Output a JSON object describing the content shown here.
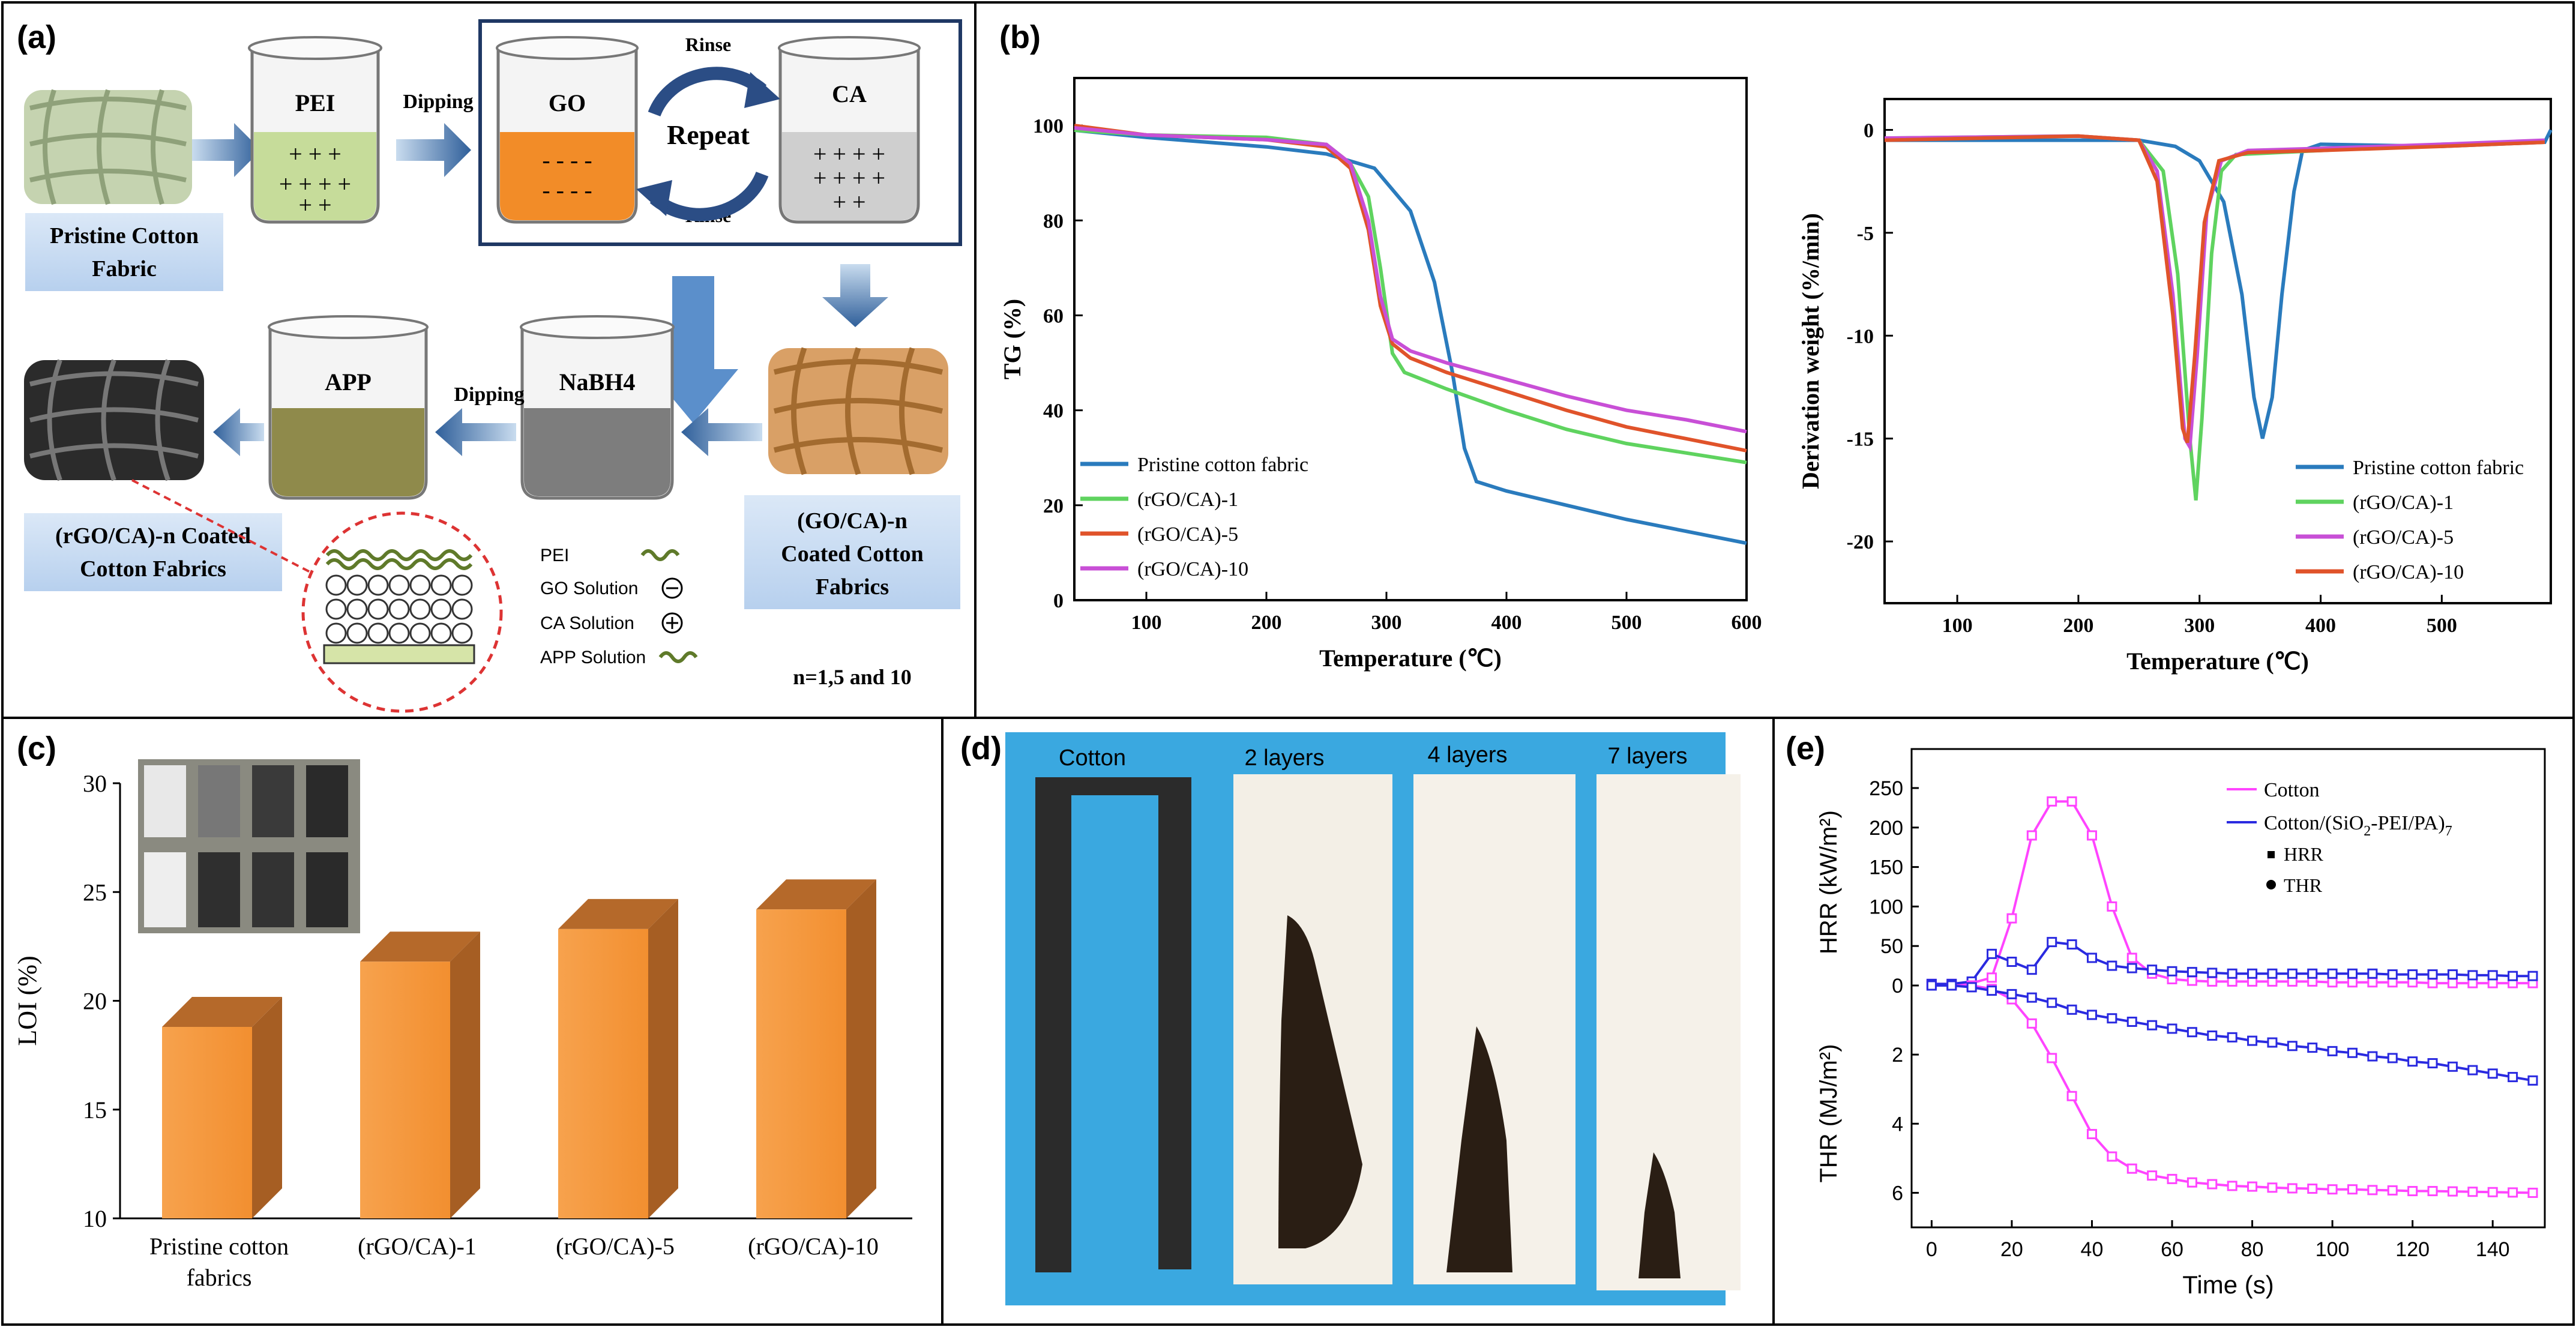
{
  "panels": {
    "a": {
      "label": "(a)",
      "pei": "PEI",
      "go": "GO",
      "ca": "CA",
      "app": "APP",
      "nabh4": "NaBH4",
      "dipping1": "Dipping",
      "dipping2": "Dipping",
      "rinse_top": "Rinse",
      "rinse_bottom": "Rinse",
      "repeat": "Repeat",
      "pristine": [
        "Pristine Cotton",
        "Fabric"
      ],
      "go_ca_coated": [
        "(GO/CA)-n",
        "Coated Cotton",
        "Fabrics"
      ],
      "rgo_coated": [
        "(rGO/CA)-n Coated",
        "Cotton Fabrics"
      ],
      "legend": [
        "PEI",
        "GO Solution",
        "CA Solution",
        "APP Solution"
      ],
      "n_values": "n=1,5 and 10"
    },
    "b": {
      "label": "(b)"
    },
    "c": {
      "label": "(c)"
    },
    "d": {
      "label": "(d)",
      "strips": [
        "Cotton",
        "2 layers",
        "4 layers",
        "7 layers"
      ]
    },
    "e": {
      "label": "(e)"
    }
  },
  "colors": {
    "pristine": "#2a7bbd",
    "rgo1": "#5fd35f",
    "rgo5": "#e0532a",
    "rgo10": "#c84fd6",
    "bar": "#f5973d",
    "cotton_e": "#ff44ff",
    "coated_e": "#2a2ae0",
    "blue_bg": "#3aa8e0"
  },
  "chart_data": [
    {
      "id": "tg",
      "type": "line",
      "xlabel": "Temperature (℃)",
      "ylabel": "TG (%)",
      "xlim": [
        40,
        600
      ],
      "ylim": [
        0,
        110
      ],
      "xticks": [
        100,
        200,
        300,
        400,
        500,
        600
      ],
      "yticks": [
        0,
        20,
        40,
        60,
        80,
        100
      ],
      "legend_position": "bottom-left",
      "series": [
        {
          "name": "Pristine cotton fabric",
          "color": "#2a7bbd",
          "points": [
            [
              40,
              99
            ],
            [
              100,
              97.5
            ],
            [
              200,
              95.5
            ],
            [
              250,
              94
            ],
            [
              290,
              91
            ],
            [
              320,
              82
            ],
            [
              340,
              67
            ],
            [
              355,
              48
            ],
            [
              365,
              32
            ],
            [
              375,
              25
            ],
            [
              400,
              23
            ],
            [
              450,
              20
            ],
            [
              500,
              17
            ],
            [
              550,
              14.5
            ],
            [
              600,
              12
            ]
          ]
        },
        {
          "name": "(rGO/CA)-1",
          "color": "#5fd35f",
          "points": [
            [
              40,
              99
            ],
            [
              100,
              98
            ],
            [
              200,
              97.5
            ],
            [
              250,
              96
            ],
            [
              270,
              92
            ],
            [
              285,
              85
            ],
            [
              295,
              70
            ],
            [
              305,
              52
            ],
            [
              315,
              48
            ],
            [
              350,
              44.5
            ],
            [
              400,
              40
            ],
            [
              450,
              36
            ],
            [
              500,
              33
            ],
            [
              550,
              31
            ],
            [
              600,
              29
            ]
          ]
        },
        {
          "name": "(rGO/CA)-5",
          "color": "#e0532a",
          "points": [
            [
              40,
              100
            ],
            [
              100,
              98
            ],
            [
              200,
              97
            ],
            [
              250,
              95.5
            ],
            [
              270,
              91
            ],
            [
              285,
              78
            ],
            [
              295,
              62
            ],
            [
              305,
              54
            ],
            [
              320,
              51
            ],
            [
              350,
              48
            ],
            [
              400,
              44
            ],
            [
              450,
              40
            ],
            [
              500,
              36.5
            ],
            [
              550,
              34
            ],
            [
              600,
              31.5
            ]
          ]
        },
        {
          "name": "(rGO/CA)-10",
          "color": "#c84fd6",
          "points": [
            [
              40,
              99.5
            ],
            [
              100,
              98
            ],
            [
              200,
              97
            ],
            [
              250,
              96
            ],
            [
              270,
              92
            ],
            [
              285,
              80
            ],
            [
              295,
              64
            ],
            [
              305,
              55
            ],
            [
              320,
              52.5
            ],
            [
              350,
              50
            ],
            [
              400,
              46.5
            ],
            [
              450,
              43
            ],
            [
              500,
              40
            ],
            [
              550,
              38
            ],
            [
              600,
              35.5
            ]
          ]
        }
      ]
    },
    {
      "id": "dtg",
      "type": "line",
      "xlabel": "Temperature (℃)",
      "ylabel": "Derivation weight (%/min)",
      "xlim": [
        40,
        590
      ],
      "ylim": [
        -23,
        1.5
      ],
      "xticks": [
        100,
        200,
        300,
        400,
        500
      ],
      "yticks": [
        0,
        -5,
        -10,
        -15,
        -20
      ],
      "legend_position": "bottom-right",
      "series": [
        {
          "name": "Pristine cotton fabric",
          "color": "#2a7bbd",
          "points": [
            [
              40,
              -0.5
            ],
            [
              150,
              -0.5
            ],
            [
              250,
              -0.5
            ],
            [
              280,
              -0.8
            ],
            [
              300,
              -1.5
            ],
            [
              320,
              -3.5
            ],
            [
              335,
              -8
            ],
            [
              345,
              -13
            ],
            [
              352,
              -15
            ],
            [
              360,
              -13
            ],
            [
              368,
              -8
            ],
            [
              378,
              -3
            ],
            [
              385,
              -1
            ],
            [
              400,
              -0.7
            ],
            [
              500,
              -0.8
            ],
            [
              585,
              -0.6
            ],
            [
              590,
              0
            ]
          ]
        },
        {
          "name": "(rGO/CA)-1",
          "color": "#5fd35f",
          "points": [
            [
              40,
              -0.4
            ],
            [
              200,
              -0.3
            ],
            [
              250,
              -0.5
            ],
            [
              270,
              -2
            ],
            [
              282,
              -7
            ],
            [
              292,
              -15
            ],
            [
              297,
              -18
            ],
            [
              302,
              -14
            ],
            [
              310,
              -6
            ],
            [
              318,
              -2
            ],
            [
              330,
              -1.2
            ],
            [
              400,
              -1
            ],
            [
              500,
              -0.7
            ],
            [
              585,
              -0.6
            ]
          ]
        },
        {
          "name": "(rGO/CA)-5",
          "color": "#c84fd6",
          "points": [
            [
              40,
              -0.4
            ],
            [
              200,
              -0.3
            ],
            [
              250,
              -0.5
            ],
            [
              265,
              -2
            ],
            [
              278,
              -8
            ],
            [
              288,
              -15
            ],
            [
              292,
              -15.4
            ],
            [
              298,
              -11
            ],
            [
              306,
              -4
            ],
            [
              318,
              -1.5
            ],
            [
              340,
              -1
            ],
            [
              400,
              -0.9
            ],
            [
              500,
              -0.7
            ],
            [
              585,
              -0.5
            ]
          ]
        },
        {
          "name": "(rGO/CA)-10",
          "color": "#e0532a",
          "points": [
            [
              40,
              -0.5
            ],
            [
              200,
              -0.3
            ],
            [
              250,
              -0.5
            ],
            [
              265,
              -2.5
            ],
            [
              278,
              -9
            ],
            [
              286,
              -14.5
            ],
            [
              290,
              -15.2
            ],
            [
              296,
              -11
            ],
            [
              304,
              -4.5
            ],
            [
              316,
              -1.5
            ],
            [
              340,
              -1.1
            ],
            [
              400,
              -1
            ],
            [
              500,
              -0.8
            ],
            [
              585,
              -0.6
            ]
          ]
        }
      ]
    },
    {
      "id": "loi",
      "type": "bar",
      "ylabel": "LOI (%)",
      "ylim": [
        10,
        30
      ],
      "yticks": [
        10,
        15,
        20,
        25,
        30
      ],
      "categories": [
        [
          "Pristine cotton",
          "fabrics"
        ],
        [
          "(rGO/CA)-1"
        ],
        [
          "(rGO/CA)-5"
        ],
        [
          "(rGO/CA)-10"
        ]
      ],
      "values": [
        18.8,
        21.8,
        23.3,
        24.2
      ]
    },
    {
      "id": "hrr_thr",
      "type": "line",
      "xlabel": "Time (s)",
      "ylabel_top": "HRR (kW/m²)",
      "ylabel_bottom": "THR (MJ/m²)",
      "xlim": [
        -5,
        153
      ],
      "xticks": [
        0,
        20,
        40,
        60,
        80,
        100,
        120,
        140
      ],
      "hrr_ylim": [
        0,
        250
      ],
      "hrr_yticks": [
        0,
        50,
        100,
        150,
        200,
        250
      ],
      "thr_ylim": [
        0,
        7
      ],
      "thr_yticks": [
        2,
        4,
        6
      ],
      "legend_position": "top-right",
      "legend": {
        "cotton": "Cotton",
        "coated_main": "Cotton/(SiO",
        "coated_sub": "2",
        "coated_tail": "-PEI/PA)",
        "coated_sub2": "7",
        "hrr": "HRR",
        "thr": "THR"
      },
      "series": [
        {
          "name": "Cotton",
          "metric": "HRR",
          "color": "#ff44ff",
          "x": [
            0,
            5,
            10,
            15,
            20,
            25,
            30,
            35,
            40,
            45,
            50,
            55,
            60,
            65,
            70,
            75,
            80,
            85,
            90,
            95,
            100,
            105,
            110,
            115,
            120,
            125,
            130,
            135,
            140,
            145,
            150
          ],
          "y": [
            2,
            2,
            3,
            10,
            85,
            190,
            233,
            233,
            190,
            100,
            35,
            15,
            8,
            6,
            5,
            5,
            5,
            5,
            5,
            5,
            4,
            4,
            4,
            4,
            4,
            3,
            3,
            3,
            3,
            3,
            3
          ]
        },
        {
          "name": "Cotton/(SiO2-PEI/PA)7",
          "metric": "HRR",
          "color": "#2a2ae0",
          "x": [
            0,
            5,
            10,
            15,
            20,
            25,
            30,
            35,
            40,
            45,
            50,
            55,
            60,
            65,
            70,
            75,
            80,
            85,
            90,
            95,
            100,
            105,
            110,
            115,
            120,
            125,
            130,
            135,
            140,
            145,
            150
          ],
          "y": [
            2,
            2,
            5,
            40,
            30,
            20,
            55,
            52,
            35,
            25,
            22,
            20,
            18,
            17,
            16,
            15,
            15,
            15,
            15,
            15,
            15,
            15,
            15,
            14,
            14,
            14,
            14,
            13,
            13,
            12,
            12
          ]
        },
        {
          "name": "Cotton",
          "metric": "THR",
          "color": "#ff44ff",
          "x": [
            0,
            5,
            10,
            15,
            20,
            25,
            30,
            35,
            40,
            45,
            50,
            55,
            60,
            65,
            70,
            75,
            80,
            85,
            90,
            95,
            100,
            105,
            110,
            115,
            120,
            125,
            130,
            135,
            140,
            145,
            150
          ],
          "y": [
            0,
            0,
            0,
            0.1,
            0.4,
            1.1,
            2.1,
            3.2,
            4.3,
            4.95,
            5.3,
            5.5,
            5.6,
            5.7,
            5.75,
            5.8,
            5.82,
            5.85,
            5.87,
            5.88,
            5.9,
            5.9,
            5.92,
            5.93,
            5.95,
            5.95,
            5.96,
            5.97,
            5.98,
            5.99,
            6.0
          ]
        },
        {
          "name": "Cotton/(SiO2-PEI/PA)7",
          "metric": "THR",
          "color": "#2a2ae0",
          "x": [
            0,
            5,
            10,
            15,
            20,
            25,
            30,
            35,
            40,
            45,
            50,
            55,
            60,
            65,
            70,
            75,
            80,
            85,
            90,
            95,
            100,
            105,
            110,
            115,
            120,
            125,
            130,
            135,
            140,
            145,
            150
          ],
          "y": [
            0,
            0,
            0.05,
            0.15,
            0.25,
            0.35,
            0.5,
            0.7,
            0.85,
            0.95,
            1.05,
            1.15,
            1.25,
            1.35,
            1.45,
            1.5,
            1.6,
            1.65,
            1.75,
            1.8,
            1.9,
            1.95,
            2.05,
            2.1,
            2.2,
            2.25,
            2.35,
            2.45,
            2.55,
            2.65,
            2.75
          ]
        }
      ]
    }
  ]
}
